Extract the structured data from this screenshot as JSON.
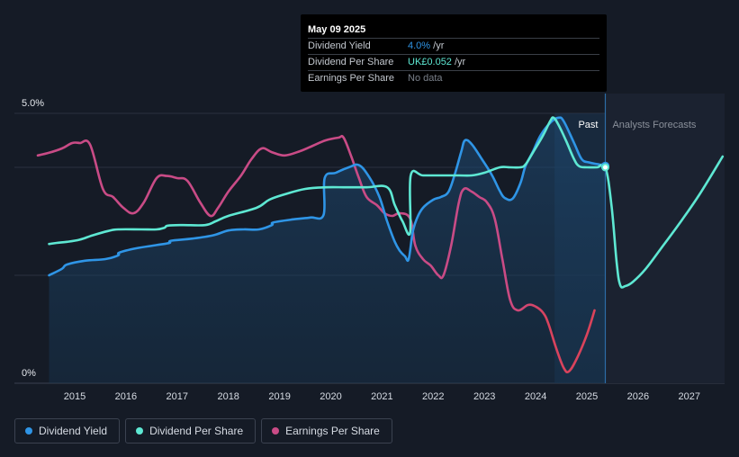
{
  "tooltip": {
    "date": "May 09 2025",
    "rows": [
      {
        "label": "Dividend Yield",
        "value": "4.0%",
        "unit": " /yr"
      },
      {
        "label": "Dividend Per Share",
        "value": "UK£0.052",
        "unit": " /yr"
      },
      {
        "label": "Earnings Per Share",
        "value": "No data",
        "unit": ""
      }
    ]
  },
  "regions": {
    "past": "Past",
    "forecast": "Analysts Forecasts"
  },
  "legend": [
    {
      "label": "Dividend Yield",
      "color": "#2f95e6"
    },
    {
      "label": "Dividend Per Share",
      "color": "#5ee8d3"
    },
    {
      "label": "Earnings Per Share",
      "color": "#c94b86"
    }
  ],
  "chart_data": {
    "type": "line",
    "y_axis": {
      "labels": [
        "5.0%",
        "0%"
      ],
      "ylim": [
        0,
        5.0
      ],
      "unit": "%"
    },
    "x_axis": {
      "ticks": [
        "2015",
        "2016",
        "2017",
        "2018",
        "2019",
        "2020",
        "2021",
        "2022",
        "2023",
        "2024",
        "2025",
        "2026",
        "2027"
      ],
      "xlim": [
        2014.0,
        2027.65
      ]
    },
    "past_end": 2025.36,
    "highlight_start": 2024.37,
    "marker_x": 2025.36,
    "colors": {
      "yield": "#2f95e6",
      "dps": "#5ee8d3",
      "eps": "#c94b86",
      "eps_low": "#e0424f",
      "grid": "#2a3140",
      "baseline": "#3b4250"
    },
    "series": [
      {
        "name": "Dividend Yield",
        "key": "yield",
        "values": [
          [
            2014.5,
            2.0
          ],
          [
            2014.75,
            2.12
          ],
          [
            2014.85,
            2.2
          ],
          [
            2015.2,
            2.27
          ],
          [
            2015.6,
            2.3
          ],
          [
            2015.85,
            2.37
          ],
          [
            2015.87,
            2.42
          ],
          [
            2016.2,
            2.5
          ],
          [
            2016.6,
            2.56
          ],
          [
            2016.85,
            2.6
          ],
          [
            2016.88,
            2.64
          ],
          [
            2017.3,
            2.68
          ],
          [
            2017.7,
            2.74
          ],
          [
            2018.0,
            2.83
          ],
          [
            2018.3,
            2.85
          ],
          [
            2018.6,
            2.85
          ],
          [
            2018.85,
            2.93
          ],
          [
            2018.88,
            2.98
          ],
          [
            2019.3,
            3.04
          ],
          [
            2019.6,
            3.07
          ],
          [
            2019.86,
            3.12
          ],
          [
            2019.88,
            3.8
          ],
          [
            2020.1,
            3.9
          ],
          [
            2020.35,
            4.0
          ],
          [
            2020.55,
            4.04
          ],
          [
            2020.75,
            3.82
          ],
          [
            2020.95,
            3.45
          ],
          [
            2021.1,
            3.0
          ],
          [
            2021.25,
            2.62
          ],
          [
            2021.35,
            2.45
          ],
          [
            2021.45,
            2.35
          ],
          [
            2021.52,
            2.3
          ],
          [
            2021.6,
            2.8
          ],
          [
            2021.68,
            3.05
          ],
          [
            2021.8,
            3.25
          ],
          [
            2022.0,
            3.4
          ],
          [
            2022.15,
            3.45
          ],
          [
            2022.3,
            3.55
          ],
          [
            2022.43,
            3.9
          ],
          [
            2022.55,
            4.3
          ],
          [
            2022.62,
            4.5
          ],
          [
            2022.75,
            4.43
          ],
          [
            2022.95,
            4.15
          ],
          [
            2023.15,
            3.85
          ],
          [
            2023.3,
            3.56
          ],
          [
            2023.4,
            3.43
          ],
          [
            2023.55,
            3.42
          ],
          [
            2023.7,
            3.7
          ],
          [
            2023.8,
            4.02
          ],
          [
            2023.95,
            4.3
          ],
          [
            2024.1,
            4.6
          ],
          [
            2024.3,
            4.84
          ],
          [
            2024.45,
            4.92
          ],
          [
            2024.55,
            4.85
          ],
          [
            2024.75,
            4.45
          ],
          [
            2024.9,
            4.15
          ],
          [
            2025.05,
            4.09
          ],
          [
            2025.2,
            4.06
          ],
          [
            2025.36,
            4.03
          ]
        ]
      },
      {
        "name": "Dividend Per Share",
        "key": "dps",
        "values": [
          [
            2014.5,
            2.58
          ],
          [
            2014.65,
            2.6
          ],
          [
            2014.85,
            2.62
          ],
          [
            2015.1,
            2.66
          ],
          [
            2015.35,
            2.74
          ],
          [
            2015.65,
            2.82
          ],
          [
            2015.85,
            2.85
          ],
          [
            2016.3,
            2.85
          ],
          [
            2016.6,
            2.85
          ],
          [
            2016.75,
            2.88
          ],
          [
            2016.82,
            2.92
          ],
          [
            2017.1,
            2.93
          ],
          [
            2017.55,
            2.93
          ],
          [
            2017.75,
            3.0
          ],
          [
            2018.0,
            3.1
          ],
          [
            2018.55,
            3.25
          ],
          [
            2018.8,
            3.4
          ],
          [
            2019.1,
            3.5
          ],
          [
            2019.5,
            3.6
          ],
          [
            2019.9,
            3.63
          ],
          [
            2020.3,
            3.63
          ],
          [
            2020.7,
            3.63
          ],
          [
            2021.1,
            3.63
          ],
          [
            2021.25,
            3.3
          ],
          [
            2021.4,
            3.0
          ],
          [
            2021.55,
            2.8
          ],
          [
            2021.56,
            3.85
          ],
          [
            2021.8,
            3.85
          ],
          [
            2022.2,
            3.85
          ],
          [
            2022.5,
            3.85
          ],
          [
            2022.75,
            3.85
          ],
          [
            2023.0,
            3.9
          ],
          [
            2023.3,
            4.0
          ],
          [
            2023.5,
            4.0
          ],
          [
            2023.7,
            4.0
          ],
          [
            2023.8,
            4.05
          ],
          [
            2023.95,
            4.28
          ],
          [
            2024.15,
            4.6
          ],
          [
            2024.28,
            4.85
          ],
          [
            2024.35,
            4.92
          ],
          [
            2024.45,
            4.78
          ],
          [
            2024.6,
            4.48
          ],
          [
            2024.75,
            4.15
          ],
          [
            2024.85,
            4.02
          ],
          [
            2025.0,
            4.0
          ],
          [
            2025.2,
            4.0
          ],
          [
            2025.36,
            4.0
          ],
          [
            2025.48,
            3.3
          ],
          [
            2025.58,
            2.25
          ],
          [
            2025.65,
            1.82
          ],
          [
            2025.75,
            1.8
          ],
          [
            2025.9,
            1.88
          ],
          [
            2026.15,
            2.12
          ],
          [
            2026.45,
            2.5
          ],
          [
            2026.8,
            2.95
          ],
          [
            2027.2,
            3.5
          ],
          [
            2027.65,
            4.2
          ]
        ]
      },
      {
        "name": "Earnings Per Share",
        "key": "eps",
        "values": [
          [
            2014.28,
            4.22
          ],
          [
            2014.5,
            4.27
          ],
          [
            2014.75,
            4.35
          ],
          [
            2014.95,
            4.45
          ],
          [
            2015.1,
            4.45
          ],
          [
            2015.3,
            4.42
          ],
          [
            2015.55,
            3.6
          ],
          [
            2015.75,
            3.45
          ],
          [
            2015.95,
            3.25
          ],
          [
            2016.15,
            3.15
          ],
          [
            2016.35,
            3.35
          ],
          [
            2016.6,
            3.8
          ],
          [
            2016.8,
            3.84
          ],
          [
            2017.0,
            3.8
          ],
          [
            2017.2,
            3.75
          ],
          [
            2017.45,
            3.35
          ],
          [
            2017.65,
            3.1
          ],
          [
            2017.8,
            3.25
          ],
          [
            2018.0,
            3.55
          ],
          [
            2018.25,
            3.85
          ],
          [
            2018.45,
            4.15
          ],
          [
            2018.65,
            4.35
          ],
          [
            2018.85,
            4.28
          ],
          [
            2019.1,
            4.22
          ],
          [
            2019.4,
            4.3
          ],
          [
            2019.65,
            4.4
          ],
          [
            2019.9,
            4.5
          ],
          [
            2020.15,
            4.55
          ],
          [
            2020.25,
            4.55
          ],
          [
            2020.4,
            4.2
          ],
          [
            2020.55,
            3.8
          ],
          [
            2020.7,
            3.45
          ],
          [
            2020.9,
            3.3
          ],
          [
            2021.05,
            3.15
          ],
          [
            2021.2,
            3.1
          ],
          [
            2021.35,
            3.15
          ],
          [
            2021.55,
            3.05
          ],
          [
            2021.65,
            2.55
          ],
          [
            2021.8,
            2.3
          ],
          [
            2021.95,
            2.18
          ],
          [
            2022.1,
            2.0
          ],
          [
            2022.2,
            2.0
          ],
          [
            2022.35,
            2.55
          ],
          [
            2022.5,
            3.35
          ],
          [
            2022.6,
            3.6
          ],
          [
            2022.75,
            3.55
          ],
          [
            2022.9,
            3.45
          ],
          [
            2023.05,
            3.35
          ],
          [
            2023.2,
            3.05
          ],
          [
            2023.35,
            2.3
          ],
          [
            2023.5,
            1.55
          ],
          [
            2023.65,
            1.35
          ],
          [
            2023.85,
            1.45
          ],
          [
            2024.0,
            1.42
          ],
          [
            2024.15,
            1.3
          ],
          [
            2024.25,
            1.1
          ],
          [
            2024.4,
            0.65
          ],
          [
            2024.55,
            0.28
          ],
          [
            2024.65,
            0.22
          ],
          [
            2024.8,
            0.45
          ],
          [
            2025.0,
            0.9
          ],
          [
            2025.15,
            1.35
          ]
        ]
      }
    ]
  }
}
